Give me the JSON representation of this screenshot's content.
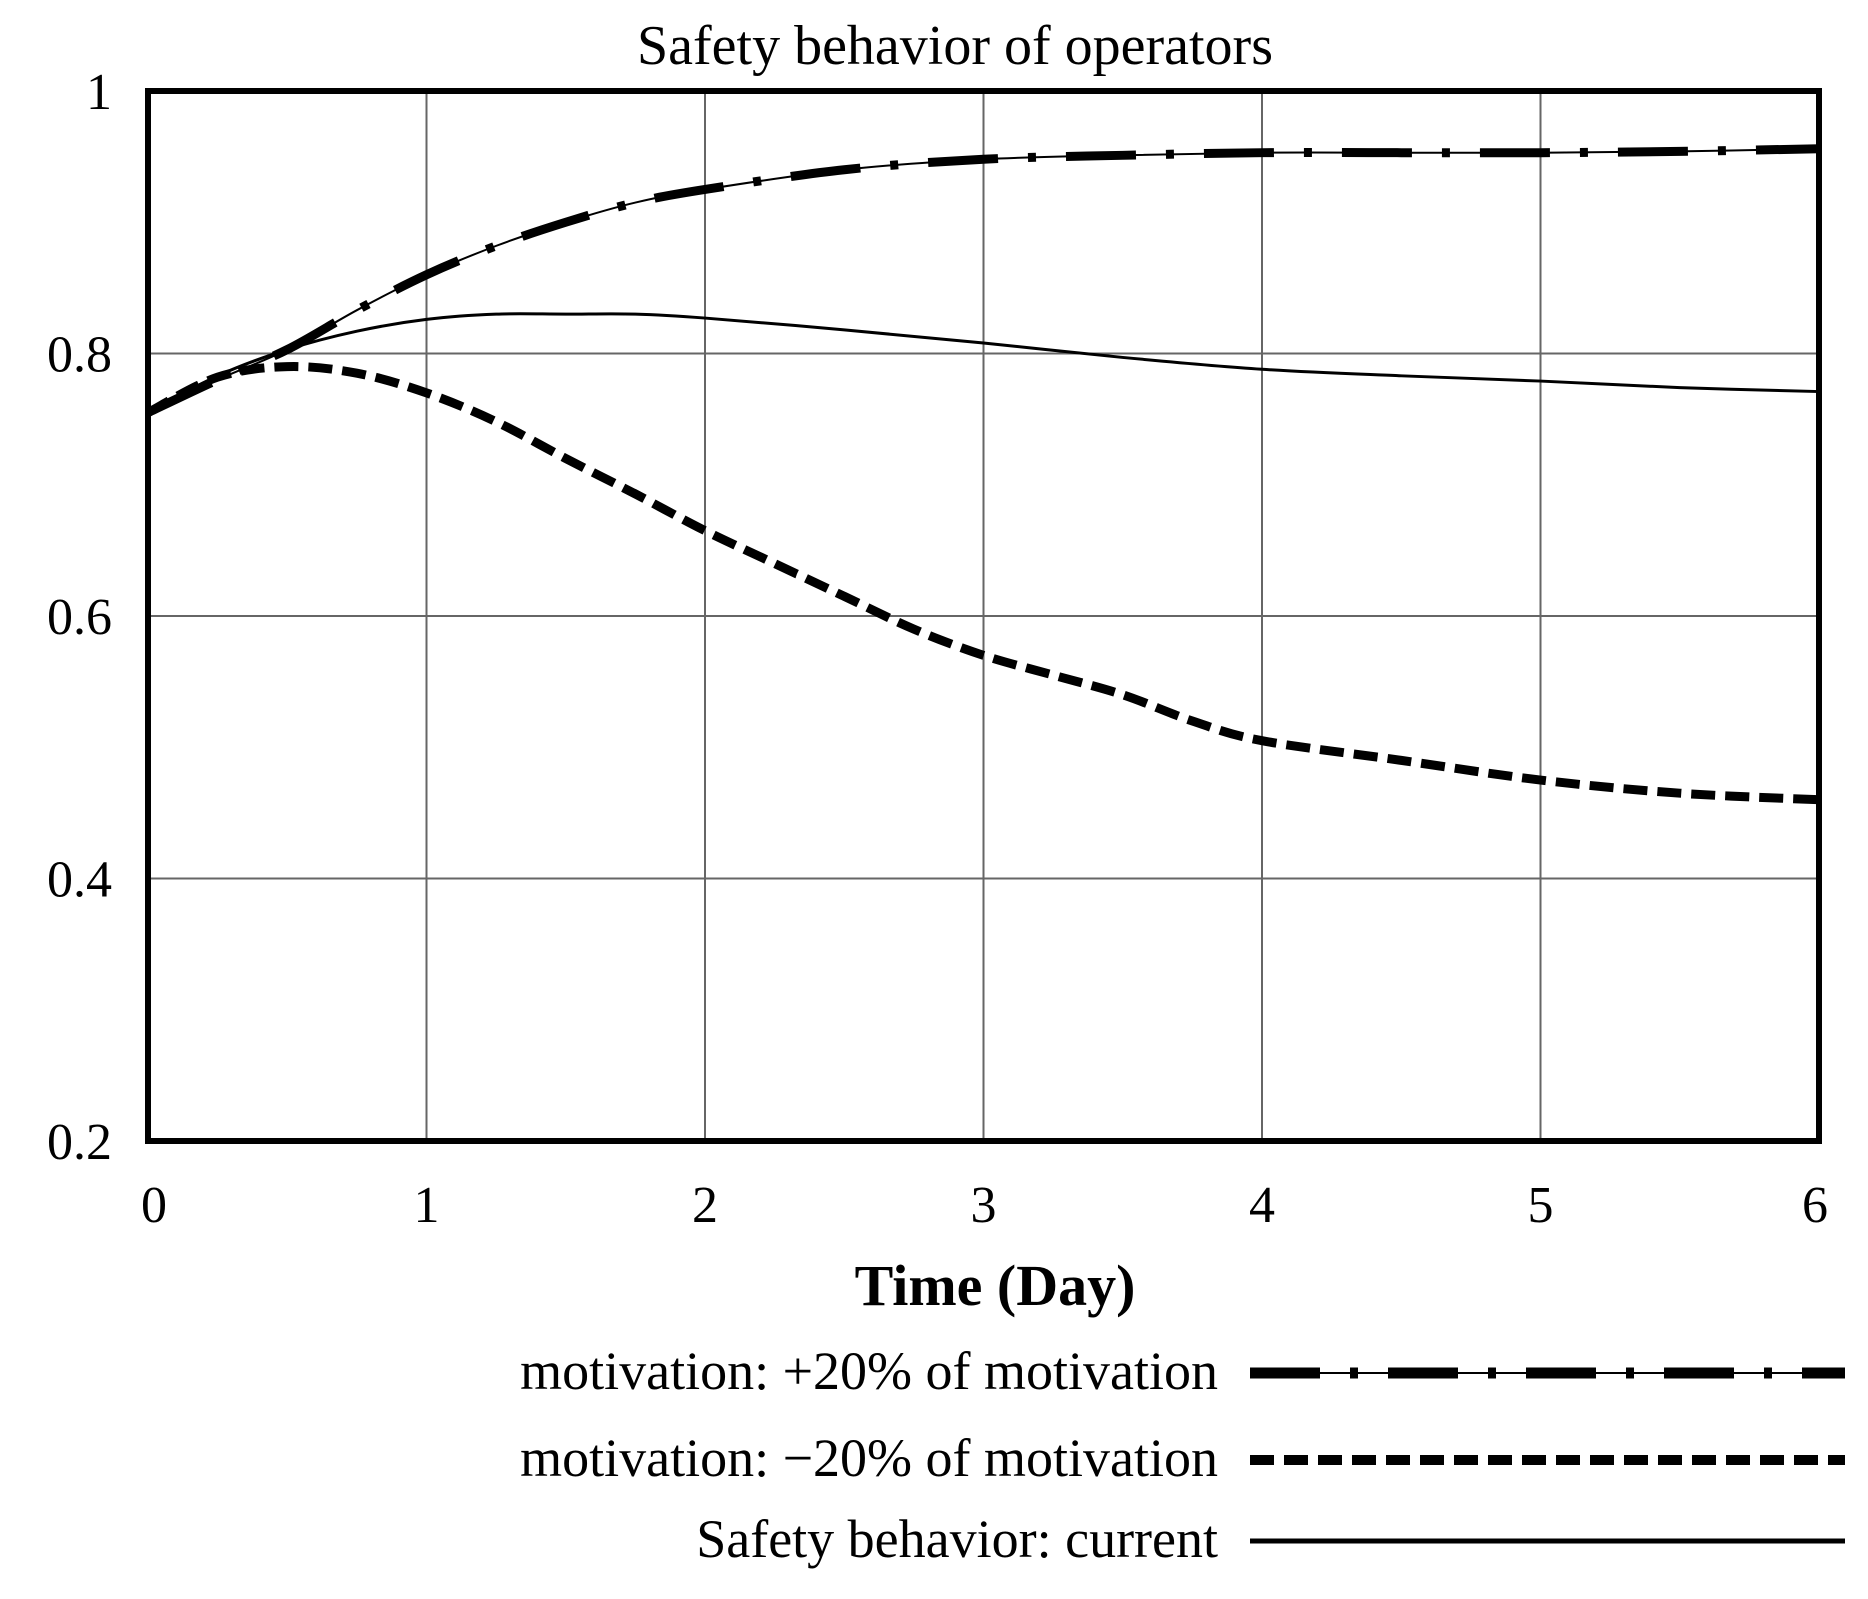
{
  "chart_data": {
    "type": "line",
    "title": "Safety behavior of operators",
    "xlabel": "Time (Day)",
    "ylabel": "",
    "xlim": [
      0,
      6
    ],
    "ylim": [
      0.2,
      1
    ],
    "xticks": [
      "0",
      "1",
      "2",
      "3",
      "4",
      "5",
      "6"
    ],
    "yticks": [
      "0.2",
      "0.4",
      "0.6",
      "0.8",
      "1"
    ],
    "grid": true,
    "legend_placement": "bottom-right",
    "series": [
      {
        "name": "motivation: +20% of motivation",
        "style": "dash-dot-thick",
        "color": "#000000",
        "x": [
          0,
          0.25,
          0.5,
          0.75,
          1,
          1.25,
          1.5,
          1.75,
          2,
          2.5,
          3,
          3.5,
          4,
          4.5,
          5,
          5.5,
          6
        ],
        "y": [
          0.755,
          0.78,
          0.803,
          0.833,
          0.86,
          0.882,
          0.9,
          0.915,
          0.925,
          0.94,
          0.948,
          0.951,
          0.953,
          0.953,
          0.953,
          0.954,
          0.956
        ]
      },
      {
        "name": "motivation: −20% of motivation",
        "style": "dashed-thick",
        "color": "#000000",
        "x": [
          0,
          0.25,
          0.5,
          0.75,
          1,
          1.25,
          1.5,
          1.75,
          2,
          2.25,
          2.5,
          2.75,
          3,
          3.25,
          3.5,
          3.75,
          4,
          4.5,
          5,
          5.5,
          6
        ],
        "y": [
          0.755,
          0.782,
          0.79,
          0.785,
          0.77,
          0.748,
          0.72,
          0.693,
          0.665,
          0.64,
          0.615,
          0.59,
          0.57,
          0.555,
          0.54,
          0.52,
          0.505,
          0.49,
          0.475,
          0.465,
          0.46
        ]
      },
      {
        "name": "Safety behavior: current",
        "style": "solid",
        "color": "#000000",
        "x": [
          0,
          0.25,
          0.5,
          0.75,
          1,
          1.25,
          1.5,
          1.75,
          2,
          2.5,
          3,
          3.5,
          4,
          4.5,
          5,
          5.5,
          6
        ],
        "y": [
          0.755,
          0.783,
          0.803,
          0.817,
          0.826,
          0.83,
          0.83,
          0.83,
          0.827,
          0.818,
          0.808,
          0.797,
          0.788,
          0.783,
          0.779,
          0.774,
          0.771
        ]
      }
    ]
  }
}
